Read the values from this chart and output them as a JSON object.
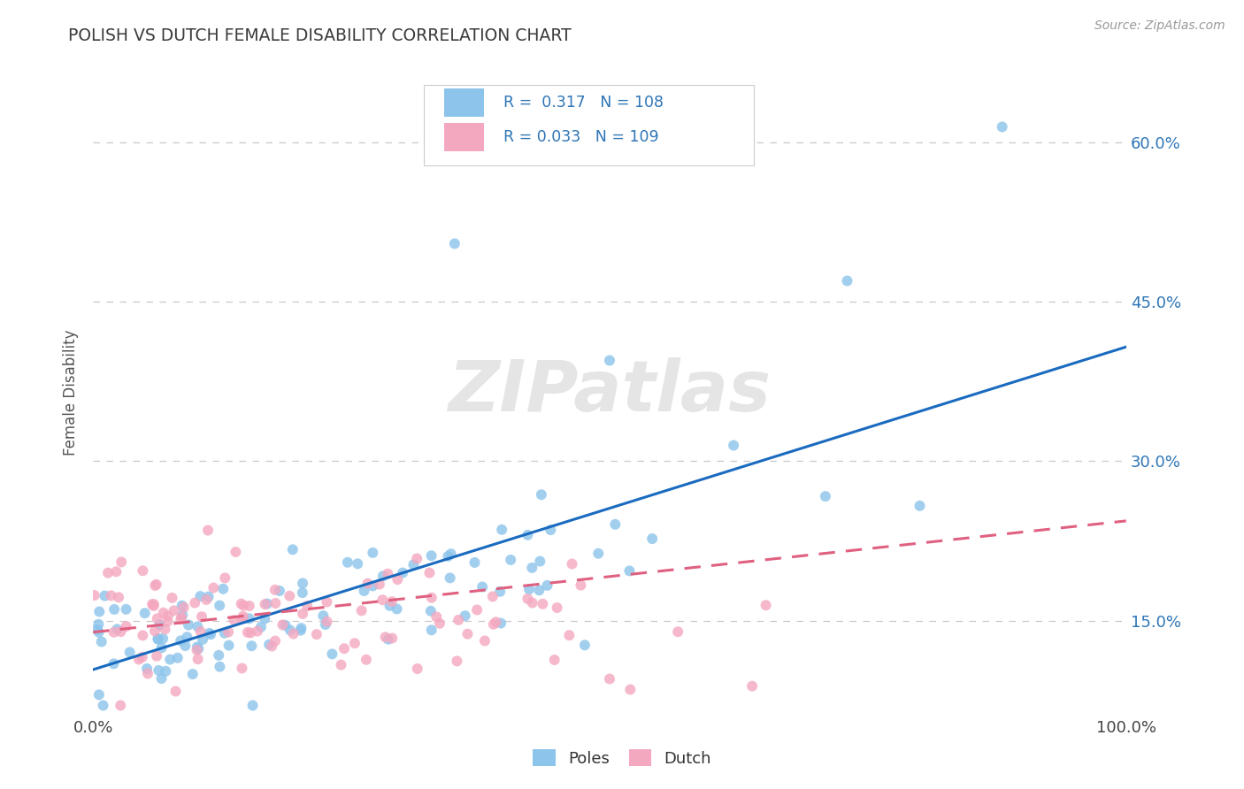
{
  "title": "POLISH VS DUTCH FEMALE DISABILITY CORRELATION CHART",
  "source": "Source: ZipAtlas.com",
  "ylabel": "Female Disability",
  "y_ticks": [
    0.15,
    0.3,
    0.45,
    0.6
  ],
  "y_tick_labels": [
    "15.0%",
    "30.0%",
    "45.0%",
    "60.0%"
  ],
  "poles_color": "#8CC4EC",
  "dutch_color": "#F4A8C0",
  "poles_line_color": "#1A6BBF",
  "dutch_line_color": "#E06080",
  "poles_R": 0.317,
  "poles_N": 108,
  "dutch_R": 0.033,
  "dutch_N": 109,
  "legend_label_poles": "Poles",
  "legend_label_dutch": "Dutch",
  "watermark": "ZIPatlas",
  "background_color": "#FFFFFF",
  "grid_color": "#C8C8C8",
  "title_color": "#3A3A3A",
  "xlim": [
    0.0,
    1.0
  ],
  "ylim": [
    0.06,
    0.67
  ]
}
